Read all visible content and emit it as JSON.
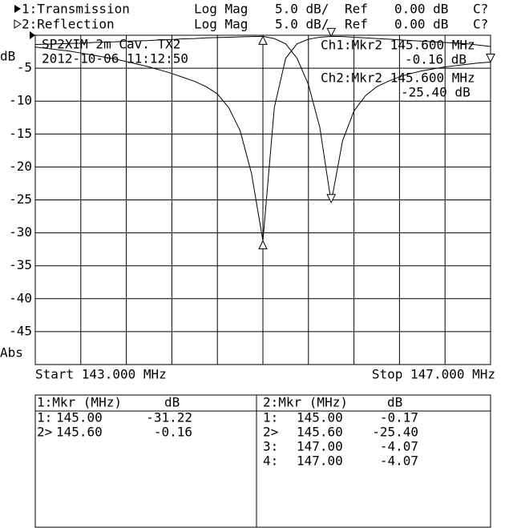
{
  "header": {
    "rows": [
      {
        "format": "Log Mag",
        "scale": "5.0 dB/",
        "ref_label": "Ref",
        "ref": "0.00 dB",
        "cal": "C?"
      },
      {
        "format": "Log Mag",
        "scale": "5.0 dB/",
        "ref_label": "Ref",
        "ref": "0.00 dB",
        "cal": "C?"
      }
    ]
  },
  "chart_data": {
    "type": "line",
    "y_unit": "dB",
    "y_mode": "Abs",
    "start_label": "Start 143.000 MHz",
    "stop_label": "Stop 147.000 MHz",
    "annotations": [
      "SP2XIM 2m Cav. TX2",
      "2012-10-06 11:12:50",
      "Ch1:Mkr2 145.600 MHz",
      "-0.16 dB",
      "Ch2:Mkr2 145.600 MHz",
      "-25.40 dB"
    ],
    "x": [
      143.0,
      143.1,
      143.2,
      143.3,
      143.4,
      143.5,
      143.6,
      143.7,
      143.8,
      143.9,
      144.0,
      144.1,
      144.2,
      144.3,
      144.4,
      144.5,
      144.6,
      144.7,
      144.8,
      144.9,
      145.0,
      145.1,
      145.2,
      145.3,
      145.4,
      145.5,
      145.6,
      145.7,
      145.8,
      145.9,
      146.0,
      146.1,
      146.2,
      146.3,
      146.4,
      146.5,
      146.6,
      146.7,
      146.8,
      146.9,
      147.0
    ],
    "xlim": [
      143,
      147
    ],
    "ylim": [
      -50,
      0
    ],
    "yticks": [
      -5,
      -10,
      -15,
      -20,
      -25,
      -30,
      -35,
      -40,
      -45
    ],
    "grid": true,
    "series": [
      {
        "name": "1:Transmission",
        "color": "#000000",
        "values": [
          -1.8,
          -2.0,
          -2.2,
          -2.4,
          -2.7,
          -3.0,
          -3.3,
          -3.6,
          -4.0,
          -4.4,
          -4.8,
          -5.3,
          -5.8,
          -6.4,
          -7.0,
          -7.8,
          -8.9,
          -11.0,
          -14.5,
          -21.0,
          -31.22,
          -11.0,
          -3.5,
          -1.3,
          -0.6,
          -0.3,
          -0.16,
          -0.2,
          -0.3,
          -0.4,
          -0.5,
          -0.6,
          -0.7,
          -0.8,
          -0.9,
          -1.0,
          -1.1,
          -1.2,
          -1.3,
          -1.5,
          -1.7
        ]
      },
      {
        "name": "2:Reflection",
        "color": "#000000",
        "values": [
          -1.4,
          -1.35,
          -1.3,
          -1.25,
          -1.2,
          -1.1,
          -1.05,
          -1.0,
          -0.9,
          -0.85,
          -0.8,
          -0.7,
          -0.65,
          -0.55,
          -0.5,
          -0.4,
          -0.35,
          -0.3,
          -0.25,
          -0.2,
          -0.17,
          -0.5,
          -1.3,
          -3.5,
          -7.5,
          -14.0,
          -25.4,
          -16.0,
          -11.5,
          -9.2,
          -7.8,
          -7.0,
          -6.3,
          -5.8,
          -5.4,
          -5.1,
          -4.8,
          -4.6,
          -4.4,
          -4.2,
          -4.07
        ]
      }
    ]
  },
  "marker_tables": [
    {
      "title": "1:Mkr (MHz)",
      "unit": "dB",
      "rows": [
        [
          "1:",
          "145.00",
          "-31.22"
        ],
        [
          "2>",
          "145.60",
          "-0.16"
        ]
      ]
    },
    {
      "title": "2:Mkr (MHz)",
      "unit": "dB",
      "rows": [
        [
          "1:",
          "145.00",
          "-0.17"
        ],
        [
          "2>",
          "145.60",
          "-25.40"
        ],
        [
          "3:",
          "147.00",
          "-4.07"
        ],
        [
          "4:",
          "147.00",
          "-4.07"
        ]
      ]
    }
  ]
}
